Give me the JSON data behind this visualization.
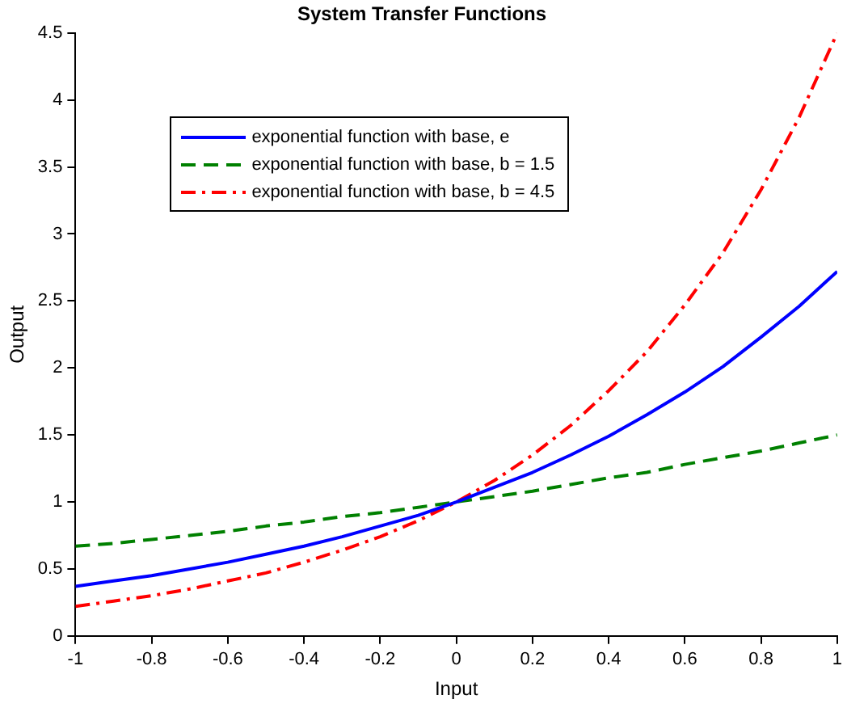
{
  "chart_data": {
    "type": "line",
    "title": "System Transfer Functions",
    "xlabel": "Input",
    "ylabel": "Output",
    "x": [
      -1,
      -0.9,
      -0.8,
      -0.7,
      -0.6,
      -0.5,
      -0.4,
      -0.3,
      -0.2,
      -0.1,
      0,
      0.1,
      0.2,
      0.3,
      0.4,
      0.5,
      0.6,
      0.7,
      0.8,
      0.9,
      1
    ],
    "series": [
      {
        "name": "exponential function with base, e",
        "color": "#0000ff",
        "line_style": "solid",
        "values": [
          0.37,
          0.41,
          0.45,
          0.5,
          0.55,
          0.61,
          0.67,
          0.74,
          0.82,
          0.9,
          1,
          1.11,
          1.22,
          1.35,
          1.49,
          1.65,
          1.82,
          2.01,
          2.23,
          2.46,
          2.72
        ]
      },
      {
        "name": "exponential function with base, b = 1.5",
        "color": "#008000",
        "line_style": "dashed",
        "values": [
          0.67,
          0.69,
          0.72,
          0.75,
          0.78,
          0.82,
          0.85,
          0.89,
          0.92,
          0.96,
          1,
          1.04,
          1.08,
          1.13,
          1.18,
          1.22,
          1.28,
          1.33,
          1.38,
          1.44,
          1.5
        ]
      },
      {
        "name": "exponential function with base, b = 4.5",
        "color": "#ff0000",
        "line_style": "dashdot",
        "values": [
          0.22,
          0.26,
          0.3,
          0.35,
          0.41,
          0.47,
          0.55,
          0.64,
          0.74,
          0.86,
          1,
          1.16,
          1.35,
          1.57,
          1.83,
          2.12,
          2.47,
          2.86,
          3.33,
          3.87,
          4.5
        ]
      }
    ],
    "xlim": [
      -1,
      1
    ],
    "xticks": [
      -1,
      -0.8,
      -0.6,
      -0.4,
      -0.2,
      0,
      0.2,
      0.4,
      0.6,
      0.8,
      1
    ],
    "ylim": [
      0,
      4.5
    ],
    "yticks": [
      0,
      0.5,
      1,
      1.5,
      2,
      2.5,
      3,
      3.5,
      4,
      4.5
    ],
    "grid": false,
    "legend": "top left",
    "marker": "none"
  }
}
